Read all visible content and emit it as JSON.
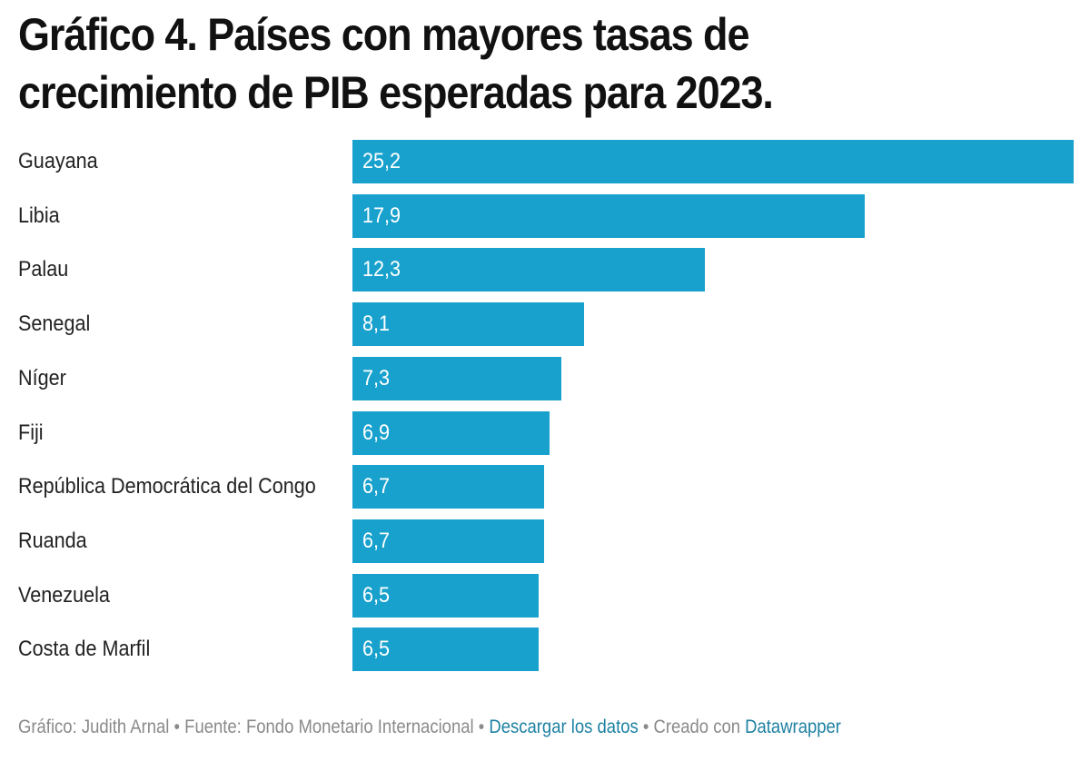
{
  "chart_data": {
    "type": "bar",
    "orientation": "horizontal",
    "title": "Gráfico 4. Países con mayores tasas de crecimiento de PIB esperadas para 2023.",
    "categories": [
      "Guayana",
      "Libia",
      "Palau",
      "Senegal",
      "Níger",
      "Fiji",
      "República Democrática del Congo",
      "Ruanda",
      "Venezuela",
      "Costa de Marfil"
    ],
    "values": [
      25.2,
      17.9,
      12.3,
      8.1,
      7.3,
      6.9,
      6.7,
      6.7,
      6.5,
      6.5
    ],
    "value_labels": [
      "25,2",
      "17,9",
      "12,3",
      "8,1",
      "7,3",
      "6,9",
      "6,7",
      "6,7",
      "6,5",
      "6,5"
    ],
    "xlim": [
      0,
      25.2
    ],
    "bar_color": "#18a1cd",
    "grid": false,
    "legend": "none"
  },
  "footer": {
    "credit": "Gráfico: Judith Arnal",
    "sep1": " • ",
    "source": "Fuente: Fondo Monetario Internacional",
    "sep2": " • ",
    "download_link": "Descargar los datos",
    "sep3": " • ",
    "created_with": "Creado con ",
    "datawrapper_link": "Datawrapper"
  },
  "colors": {
    "link": "#1d81a2",
    "footer_text": "#8a8a8a",
    "bar_label": "#ffffff"
  }
}
